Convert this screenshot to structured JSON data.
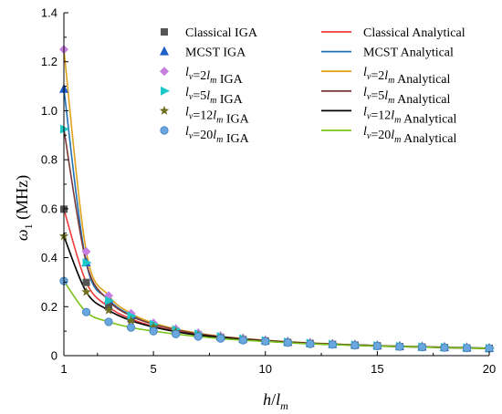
{
  "chart_data": {
    "type": "line",
    "xlabel": "h/l_m",
    "ylabel": "ω_1 (MHz)",
    "xlim": [
      1,
      20
    ],
    "ylim": [
      0,
      1.4
    ],
    "xticks": [
      "1",
      "5",
      "10",
      "15",
      "20"
    ],
    "yticks": [
      "0",
      "0.2",
      "0.4",
      "0.6",
      "0.8",
      "1.0",
      "1.2",
      "1.4"
    ],
    "grid": false,
    "legend_position": "top-right",
    "legend_columns": 2,
    "x": [
      1,
      2,
      3,
      4,
      5,
      6,
      7,
      8,
      9,
      10,
      11,
      12,
      13,
      14,
      15,
      16,
      17,
      18,
      19,
      20
    ],
    "series": [
      {
        "name": "Classical IGA",
        "kind": "markers",
        "marker": "square",
        "color": "#555555",
        "values": [
          0.598,
          0.299,
          0.199,
          0.15,
          0.12,
          0.1,
          0.085,
          0.075,
          0.066,
          0.06,
          0.054,
          0.05,
          0.046,
          0.043,
          0.04,
          0.037,
          0.035,
          0.033,
          0.031,
          0.03
        ]
      },
      {
        "name": "MCST IGA",
        "kind": "markers",
        "marker": "triangle",
        "color": "#1f5fc8",
        "values": [
          1.088,
          0.38,
          0.23,
          0.165,
          0.13,
          0.107,
          0.09,
          0.078,
          0.069,
          0.062,
          0.056,
          0.051,
          0.047,
          0.044,
          0.041,
          0.038,
          0.036,
          0.034,
          0.032,
          0.03
        ]
      },
      {
        "name": "l_v=2l_m IGA",
        "kind": "markers",
        "marker": "diamond",
        "color": "#c77fe0",
        "values": [
          1.25,
          0.425,
          0.245,
          0.172,
          0.133,
          0.109,
          0.092,
          0.079,
          0.07,
          0.063,
          0.057,
          0.052,
          0.048,
          0.044,
          0.041,
          0.038,
          0.036,
          0.034,
          0.032,
          0.03
        ]
      },
      {
        "name": "l_v=5l_m IGA",
        "kind": "markers",
        "marker": "triangle-right",
        "color": "#1ec8c8",
        "values": [
          0.925,
          0.38,
          0.225,
          0.162,
          0.128,
          0.106,
          0.089,
          0.078,
          0.069,
          0.062,
          0.056,
          0.051,
          0.047,
          0.044,
          0.041,
          0.038,
          0.036,
          0.034,
          0.032,
          0.03
        ]
      },
      {
        "name": "l_v=12l_m IGA",
        "kind": "markers",
        "marker": "star",
        "color": "#6e6e1e",
        "values": [
          0.488,
          0.26,
          0.185,
          0.143,
          0.117,
          0.098,
          0.084,
          0.074,
          0.066,
          0.059,
          0.054,
          0.049,
          0.046,
          0.042,
          0.039,
          0.037,
          0.035,
          0.033,
          0.031,
          0.03
        ]
      },
      {
        "name": "l_v=20l_m IGA",
        "kind": "markers",
        "marker": "circle",
        "color": "#6aa7df",
        "values": [
          0.305,
          0.178,
          0.138,
          0.115,
          0.1,
          0.088,
          0.078,
          0.07,
          0.063,
          0.058,
          0.053,
          0.048,
          0.045,
          0.042,
          0.039,
          0.037,
          0.035,
          0.033,
          0.031,
          0.03
        ]
      },
      {
        "name": "Classical Analytical",
        "kind": "line",
        "color": "#ee3b3b",
        "values": [
          0.598,
          0.299,
          0.199,
          0.15,
          0.12,
          0.1,
          0.085,
          0.075,
          0.066,
          0.06,
          0.054,
          0.05,
          0.046,
          0.043,
          0.04,
          0.037,
          0.035,
          0.033,
          0.031,
          0.03
        ]
      },
      {
        "name": "MCST Analytical",
        "kind": "line",
        "color": "#1f6fb4",
        "values": [
          1.088,
          0.38,
          0.23,
          0.165,
          0.13,
          0.107,
          0.09,
          0.078,
          0.069,
          0.062,
          0.056,
          0.051,
          0.047,
          0.044,
          0.041,
          0.038,
          0.036,
          0.034,
          0.032,
          0.03
        ]
      },
      {
        "name": "l_v=2l_m Analytical",
        "kind": "line",
        "color": "#e0a21a",
        "values": [
          1.25,
          0.425,
          0.245,
          0.172,
          0.133,
          0.109,
          0.092,
          0.079,
          0.07,
          0.063,
          0.057,
          0.052,
          0.048,
          0.044,
          0.041,
          0.038,
          0.036,
          0.034,
          0.032,
          0.03
        ]
      },
      {
        "name": "l_v=5l_m Analytical",
        "kind": "line",
        "color": "#7a3a3a",
        "values": [
          0.925,
          0.38,
          0.225,
          0.162,
          0.128,
          0.106,
          0.089,
          0.078,
          0.069,
          0.062,
          0.056,
          0.051,
          0.047,
          0.044,
          0.041,
          0.038,
          0.036,
          0.034,
          0.032,
          0.03
        ]
      },
      {
        "name": "l_v=12l_m Analytical",
        "kind": "line",
        "color": "#000000",
        "values": [
          0.488,
          0.26,
          0.185,
          0.143,
          0.117,
          0.098,
          0.084,
          0.074,
          0.066,
          0.059,
          0.054,
          0.049,
          0.046,
          0.042,
          0.039,
          0.037,
          0.035,
          0.033,
          0.031,
          0.03
        ]
      },
      {
        "name": "l_v=20l_m Analytical",
        "kind": "line",
        "color": "#7ac21a",
        "values": [
          0.305,
          0.178,
          0.138,
          0.115,
          0.1,
          0.088,
          0.078,
          0.07,
          0.063,
          0.058,
          0.053,
          0.048,
          0.045,
          0.042,
          0.039,
          0.037,
          0.035,
          0.033,
          0.031,
          0.03
        ]
      }
    ]
  }
}
